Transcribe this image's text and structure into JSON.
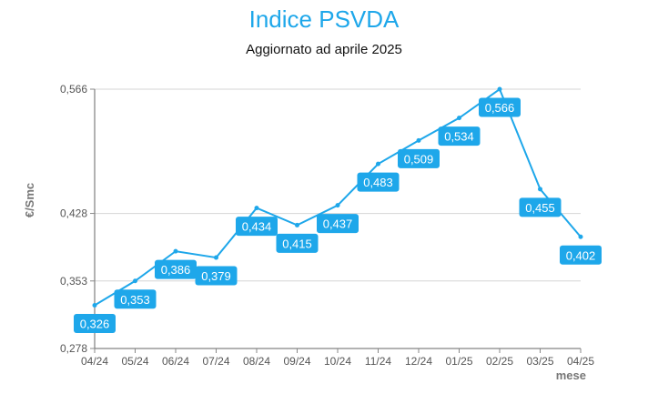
{
  "chart_data": {
    "type": "line",
    "title": "Indice PSVDA",
    "subtitle": "Aggiornato ad aprile 2025",
    "xlabel": "mese",
    "ylabel": "€/Smc",
    "categories": [
      "04/24",
      "05/24",
      "06/24",
      "07/24",
      "08/24",
      "09/24",
      "10/24",
      "11/24",
      "12/24",
      "01/25",
      "02/25",
      "03/25",
      "04/25"
    ],
    "values": [
      0.326,
      0.353,
      0.386,
      0.379,
      0.434,
      0.415,
      0.437,
      0.483,
      0.509,
      0.534,
      0.566,
      0.455,
      0.402
    ],
    "labels": [
      "0,326",
      "0,353",
      "0,386",
      "0,379",
      "0,434",
      "0,415",
      "0,437",
      "0,483",
      "0,509",
      "0,534",
      "0,566",
      "0,455",
      "0,402"
    ],
    "yticks": [
      0.278,
      0.353,
      0.428,
      0.566
    ],
    "ytick_labels": [
      "0,278",
      "0,353",
      "0,428",
      "0,566"
    ],
    "ylim": [
      0.278,
      0.566
    ],
    "grid": true,
    "color": "#1ea7ea"
  }
}
